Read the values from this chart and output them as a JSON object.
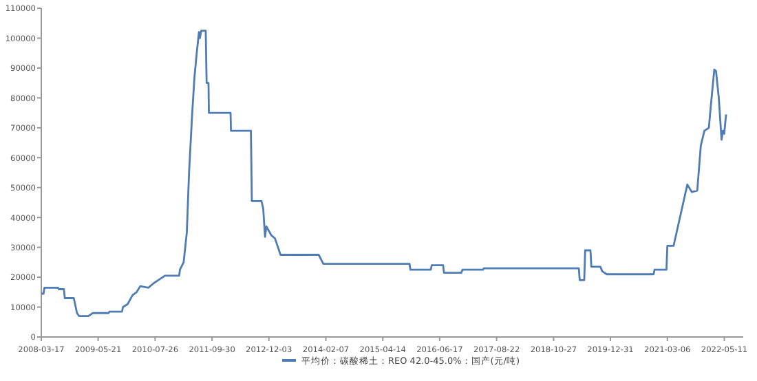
{
  "chart_data": {
    "type": "line",
    "legend": "bottom",
    "x": [
      "2008-03-17",
      "2008-04-03",
      "2008-04-10",
      "2008-07-21",
      "2008-07-28",
      "2008-09-04",
      "2008-09-11",
      "2008-11-18",
      "2008-12-12",
      "2008-12-29",
      "2009-03-08",
      "2009-04-11",
      "2009-08-08",
      "2009-08-15",
      "2009-11-18",
      "2009-11-25",
      "2009-12-30",
      "2010-02-06",
      "2010-03-08",
      "2010-04-05",
      "2010-06-05",
      "2010-07-16",
      "2010-08-19",
      "2010-10-09",
      "2011-01-24",
      "2011-01-30",
      "2011-02-27",
      "2011-03-23",
      "2011-04-09",
      "2011-05-03",
      "2011-05-20",
      "2011-06-06",
      "2011-06-23",
      "2011-06-30",
      "2011-07-10",
      "2011-08-13",
      "2011-08-20",
      "2011-09-03",
      "2011-09-06",
      "2012-02-17",
      "2012-02-20",
      "2012-07-20",
      "2012-07-27",
      "2012-10-08",
      "2012-10-21",
      "2012-11-04",
      "2012-11-14",
      "2012-12-22",
      "2013-01-18",
      "2013-03-01",
      "2013-12-15",
      "2014-01-19",
      "2015-11-02",
      "2015-11-09",
      "2016-04-11",
      "2016-04-18",
      "2016-07-13",
      "2016-07-20",
      "2016-11-27",
      "2016-12-07",
      "2017-05-11",
      "2017-05-18",
      "2019-05-06",
      "2019-05-13",
      "2019-06-16",
      "2019-06-23",
      "2019-08-02",
      "2019-08-09",
      "2019-10-16",
      "2019-10-30",
      "2019-12-03",
      "2020-11-22",
      "2020-11-29",
      "2021-02-27",
      "2021-03-06",
      "2021-04-22",
      "2021-08-04",
      "2021-09-07",
      "2021-10-18",
      "2021-11-14",
      "2021-12-11",
      "2022-01-14",
      "2022-01-28",
      "2022-02-24",
      "2022-03-09",
      "2022-03-30",
      "2022-04-20",
      "2022-04-30",
      "2022-05-10",
      "2022-05-24"
    ],
    "series": [
      {
        "name": "平均价：碳酸稀土：REO 42.0-45.0%：国产(元/吨)",
        "color": "#4f7cb3",
        "values": [
          14500,
          14500,
          16500,
          16500,
          16000,
          16000,
          13000,
          13000,
          8000,
          7000,
          7000,
          8000,
          8000,
          8500,
          8500,
          10000,
          11000,
          14000,
          15000,
          17000,
          16500,
          18000,
          19000,
          20500,
          20500,
          22500,
          25000,
          35000,
          55000,
          75000,
          87000,
          95000,
          102000,
          100000,
          102500,
          102500,
          85000,
          85000,
          75000,
          75000,
          69000,
          69000,
          45500,
          45500,
          43000,
          33500,
          37000,
          34000,
          33000,
          27500,
          27500,
          24500,
          24500,
          22500,
          22500,
          24000,
          24000,
          21500,
          21500,
          22500,
          22500,
          23000,
          23000,
          19000,
          19000,
          29000,
          29000,
          23500,
          23500,
          22000,
          21000,
          21000,
          22500,
          22500,
          30500,
          30500,
          51000,
          48500,
          49000,
          64000,
          69000,
          70000,
          77000,
          89500,
          89000,
          80000,
          66000,
          69000,
          68000,
          74500
        ]
      }
    ],
    "xlim": [
      "2008-03-17",
      "2022-10-01"
    ],
    "xticks": [
      "2008-03-17",
      "2009-05-21",
      "2010-07-26",
      "2011-09-30",
      "2012-12-03",
      "2014-02-07",
      "2015-04-14",
      "2016-06-17",
      "2017-08-22",
      "2018-10-27",
      "2019-12-31",
      "2021-03-06",
      "2022-05-11"
    ],
    "ylim": [
      0,
      110000
    ],
    "yticks": [
      0,
      10000,
      20000,
      30000,
      40000,
      50000,
      60000,
      70000,
      80000,
      90000,
      100000,
      110000
    ]
  }
}
